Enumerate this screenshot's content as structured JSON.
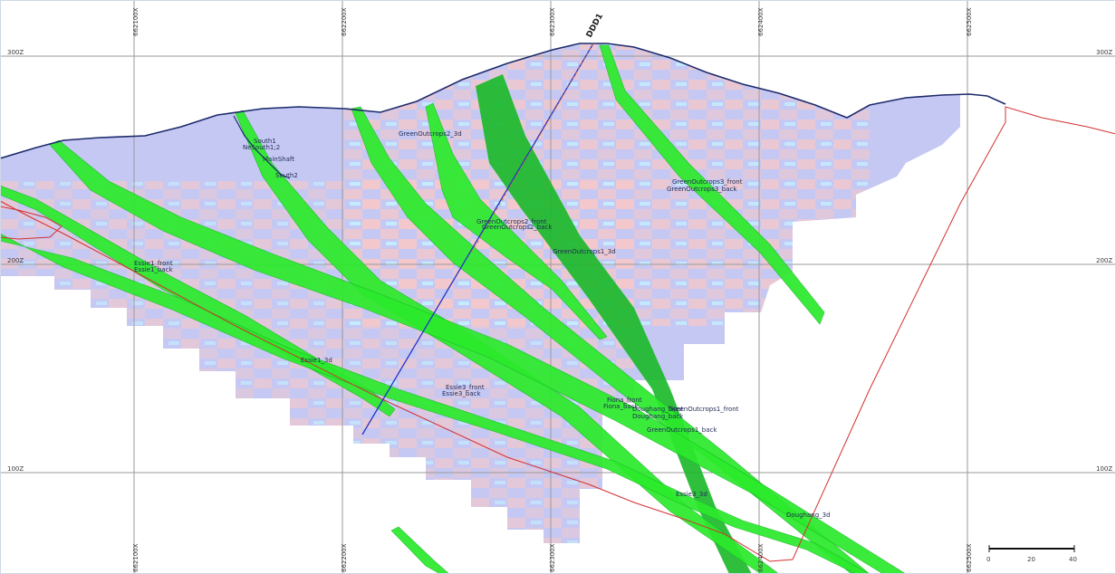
{
  "colors": {
    "block_fill": "#c5c8f3",
    "block_pink": "#f6c8c8",
    "block_cyan": "#c3efff",
    "vein_green": "#2bea2b",
    "vein_dark": "#18b828",
    "topography": "#1c2a6b",
    "boundary": "#d33030",
    "drillhole": "#2235c8",
    "grid": "#9a9a9a"
  },
  "grid": {
    "easting_labels": [
      "662100X",
      "662200X",
      "662300X",
      "662400X",
      "662500X"
    ],
    "elevation_labels": [
      "300Z",
      "200Z",
      "100Z"
    ]
  },
  "drillhole": {
    "name": "DDD1"
  },
  "labels": {
    "south1": "South1",
    "south12": "NeSouth1;2",
    "mainshaft": "MainShaft",
    "south2": "South2",
    "green2_3d": "GreenOutcrops2_3d",
    "green3_front": "GreenOutcrops3_front",
    "green3_back": "GreenOutcrops3_back",
    "green2_front": "GreenOutcrops2_front",
    "green2_back": "GreenOutcrops2_back",
    "green1_3d": "GreenOutcrops1_3d",
    "essie1_front": "Essie1_front",
    "essie1_back": "Essie1_back",
    "essie1_3d": "Essie1_3d",
    "essie3_front": "Essie3_front",
    "essie3_back": "Essie3_back",
    "essie3_3d": "Essie3_3d",
    "fiona_front": "Fiona_front",
    "fiona_back": "Fiona_back",
    "green1_front": "GreenOutcrops1_front",
    "doughang_front": "Doughang_front",
    "doughang_back": "Doughang_back",
    "green1_back": "GreenOutcrops1_back",
    "doughang_3d": "Doughang_3d"
  },
  "scale_bar": {
    "ticks": [
      "0",
      "20",
      "40"
    ]
  }
}
